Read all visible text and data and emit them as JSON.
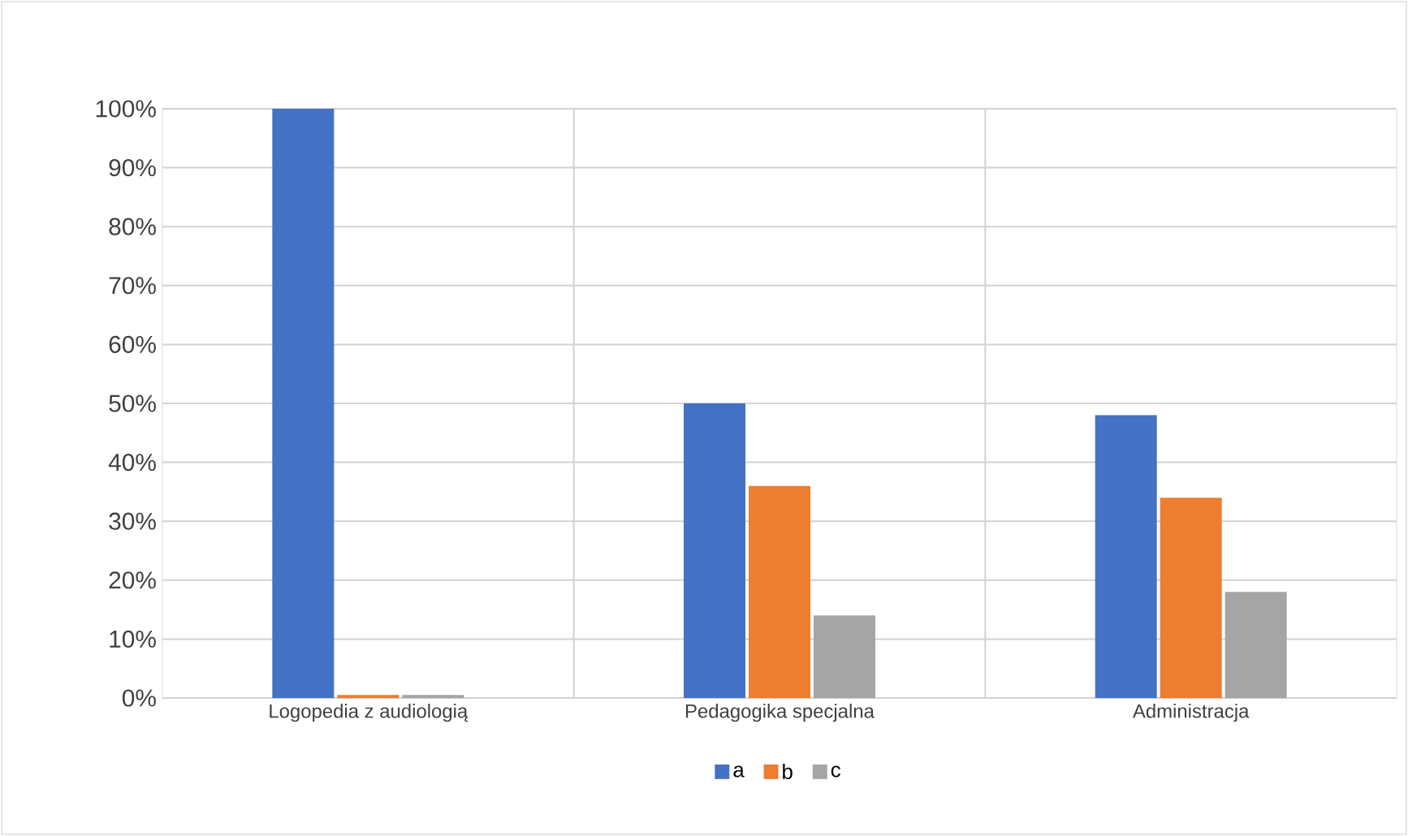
{
  "chart_data": {
    "type": "bar",
    "categories": [
      "Logopedia z audiologią",
      "Pedagogika specjalna",
      "Administracja"
    ],
    "series": [
      {
        "name": "a",
        "color": "#4472c4",
        "values": [
          100,
          50,
          48
        ]
      },
      {
        "name": "b",
        "color": "#ed7d31",
        "values": [
          0.5,
          36,
          34
        ]
      },
      {
        "name": "c",
        "color": "#a5a5a5",
        "values": [
          0.5,
          14,
          18
        ]
      }
    ],
    "ylim": [
      0,
      100
    ],
    "yticks": [
      {
        "value": 0,
        "label": "0%"
      },
      {
        "value": 10,
        "label": "10%"
      },
      {
        "value": 20,
        "label": "20%"
      },
      {
        "value": 30,
        "label": "30%"
      },
      {
        "value": 40,
        "label": "40%"
      },
      {
        "value": 50,
        "label": "50%"
      },
      {
        "value": 60,
        "label": "60%"
      },
      {
        "value": 70,
        "label": "70%"
      },
      {
        "value": 80,
        "label": "80%"
      },
      {
        "value": 90,
        "label": "90%"
      },
      {
        "value": 100,
        "label": "100%"
      }
    ],
    "grid": true,
    "legend": "bottom"
  }
}
